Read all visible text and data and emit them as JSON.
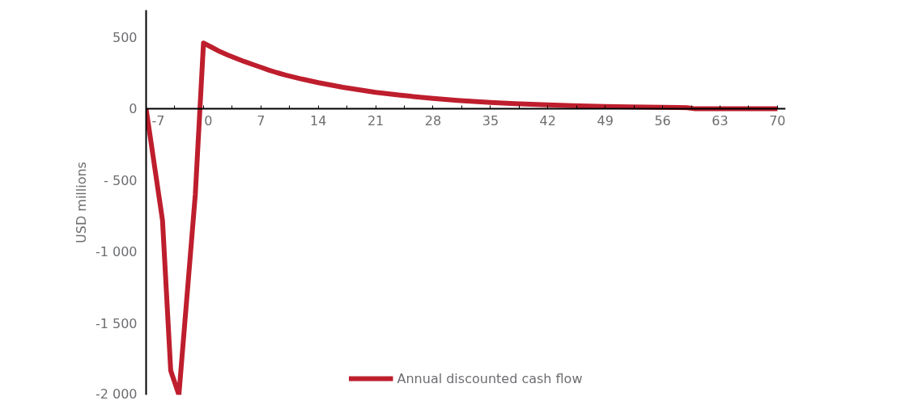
{
  "chart_data": {
    "type": "line",
    "ylabel": "USD millions",
    "x": [
      -7,
      -5,
      -4,
      -3,
      -1,
      0,
      1,
      2,
      3,
      4,
      5,
      6,
      7,
      8,
      9,
      10,
      12,
      14,
      17,
      21,
      24,
      28,
      31,
      35,
      38,
      42,
      45,
      49,
      52,
      56,
      58,
      59,
      60,
      63,
      70
    ],
    "series": [
      {
        "name": "Annual discounted cash flow",
        "color": "#be1e2d",
        "values": [
          0,
          -780,
          -1830,
          -2000,
          -600,
          460,
          430,
          400,
          375,
          352,
          330,
          310,
          290,
          270,
          252,
          236,
          208,
          183,
          150,
          115,
          95,
          72,
          58,
          44,
          36,
          27,
          22,
          16,
          13,
          10,
          9,
          8,
          0,
          0,
          0
        ]
      }
    ],
    "xlim": [
      -7,
      71
    ],
    "ylim": [
      -2000,
      690
    ],
    "xticks": [
      -7,
      {
        "value": -3.5,
        "label": null
      },
      0,
      {
        "value": 3.5,
        "label": null
      },
      7,
      {
        "value": 10.5,
        "label": null
      },
      14,
      {
        "value": 17.5,
        "label": null
      },
      21,
      {
        "value": 24.5,
        "label": null
      },
      28,
      {
        "value": 31.5,
        "label": null
      },
      35,
      {
        "value": 38.5,
        "label": null
      },
      42,
      {
        "value": 45.5,
        "label": null
      },
      49,
      {
        "value": 52.5,
        "label": null
      },
      56,
      {
        "value": 59.5,
        "label": null
      },
      63,
      {
        "value": 66.5,
        "label": null
      },
      70
    ],
    "yticks": [
      500,
      0,
      {
        "value": -500,
        "label": "- 500"
      },
      {
        "value": -1000,
        "label": "-1 000"
      },
      {
        "value": -1500,
        "label": "-1 500"
      },
      {
        "value": -2000,
        "label": "-2 000"
      }
    ],
    "grid": false,
    "legend": "bottom",
    "line_style": "solid",
    "marker": "none"
  }
}
